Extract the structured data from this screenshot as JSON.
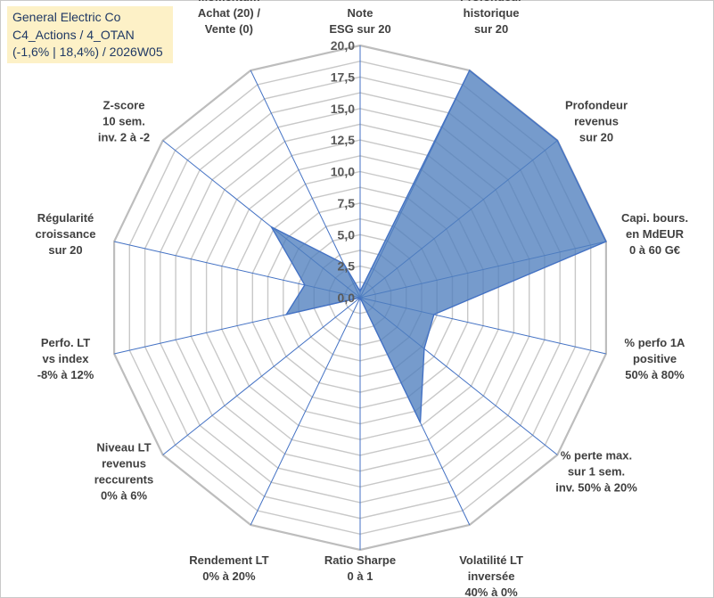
{
  "title_box": {
    "line1": "General Electric Co",
    "line2": "C4_Actions / 4_OTAN",
    "line3": "(-1,6% | 18,4%) / 2026W05",
    "background": "#fdf1c7"
  },
  "chart_data": {
    "type": "radar",
    "ylim": [
      0,
      20
    ],
    "tick_labels": [
      "0,0",
      "2,5",
      "5,0",
      "7,5",
      "10,0",
      "12,5",
      "15,0",
      "17,5",
      "20,0"
    ],
    "grid": true,
    "fill_color": "#4f7fbe",
    "line_color": "#4472c4",
    "axes": [
      {
        "label": [
          "Note",
          "ESG sur 20"
        ],
        "value": 0.5
      },
      {
        "label": [
          "Profondeur",
          "historique",
          "sur 20"
        ],
        "value": 20
      },
      {
        "label": [
          "Profondeur",
          "revenus",
          "sur 20"
        ],
        "value": 20
      },
      {
        "label": [
          "Capi. bours.",
          "en MdEUR",
          "0 à 60 G€"
        ],
        "value": 20
      },
      {
        "label": [
          "% perfo 1A",
          "positive",
          "50% à 80%"
        ],
        "value": 6
      },
      {
        "label": [
          "% perte max.",
          "sur 1 sem.",
          "inv. 50% à 20%"
        ],
        "value": 6.5
      },
      {
        "label": [
          "Volatilité LT",
          "inversée",
          "40% à 0%"
        ],
        "value": 11
      },
      {
        "label": [
          "Ratio Sharpe",
          "0 à 1"
        ],
        "value": 0
      },
      {
        "label": [
          "Rendement LT",
          "0% à 20%"
        ],
        "value": 0
      },
      {
        "label": [
          "Niveau LT",
          "revenus",
          "reccurents",
          "0% à 6%"
        ],
        "value": 0
      },
      {
        "label": [
          "Perfo. LT",
          "vs index",
          "-8% à 12%"
        ],
        "value": 6
      },
      {
        "label": [
          "Régularité",
          "croissance",
          "sur 20"
        ],
        "value": 4.5
      },
      {
        "label": [
          "Z-score",
          "10 sem.",
          "inv. 2 à -2"
        ],
        "value": 9
      },
      {
        "label": [
          "Momentum",
          "Achat (20) /",
          "Vente (0)"
        ],
        "value": 3
      }
    ]
  }
}
